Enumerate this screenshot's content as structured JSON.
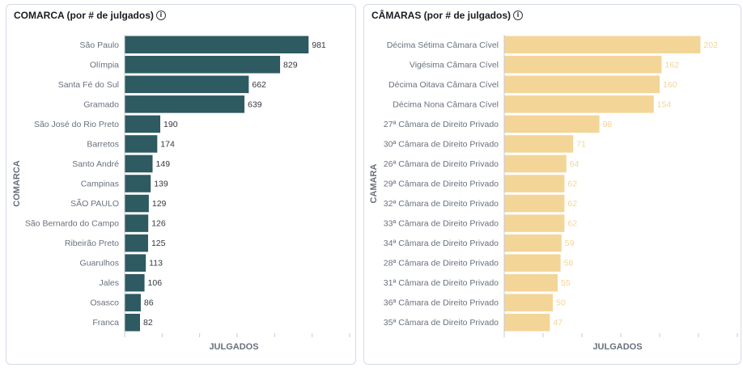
{
  "chart_data": [
    {
      "type": "bar",
      "orientation": "horizontal",
      "title": "COMARCA (por # de julgados)",
      "xlabel": "JULGADOS",
      "ylabel": "COMARCA",
      "categories": [
        "São Paulo",
        "Olímpia",
        "Santa Fé do Sul",
        "Gramado",
        "São José do Rio Preto",
        "Barretos",
        "Santo André",
        "Campinas",
        "SÃO PAULO",
        "São Bernardo do Campo",
        "Ribeirão Preto",
        "Guarulhos",
        "Jales",
        "Osasco",
        "Franca"
      ],
      "values": [
        981,
        829,
        662,
        639,
        190,
        174,
        149,
        139,
        129,
        126,
        125,
        113,
        106,
        86,
        82
      ],
      "xlim": [
        0,
        1200
      ],
      "bar_color": "#2e5a61",
      "label_color": "#343741"
    },
    {
      "type": "bar",
      "orientation": "horizontal",
      "title": "CÂMARAS (por # de julgados)",
      "xlabel": "JULGADOS",
      "ylabel": "CAMARA",
      "categories": [
        "Décima Sétima Câmara Cível",
        "Vigésima Câmara Cível",
        "Décima Oitava Câmara Cível",
        "Décima Nona Câmara Cível",
        "27ª Câmara de Direito Privado",
        "30ª Câmara de Direito Privado",
        "26ª Câmara de Direito Privado",
        "29ª Câmara de Direito Privado",
        "32ª Câmara de Direito Privado",
        "33ª Câmara de Direito Privado",
        "34ª Câmara de Direito Privado",
        "28ª Câmara de Direito Privado",
        "31ª Câmara de Direito Privado",
        "36ª Câmara de Direito Privado",
        "35ª Câmara de Direito Privado"
      ],
      "values": [
        202,
        162,
        160,
        154,
        98,
        71,
        64,
        62,
        62,
        62,
        59,
        58,
        55,
        50,
        47
      ],
      "xlim": [
        0,
        240
      ],
      "bar_color": "#f3d598",
      "label_color": "#f3d598"
    }
  ],
  "info_icon": "info-icon"
}
